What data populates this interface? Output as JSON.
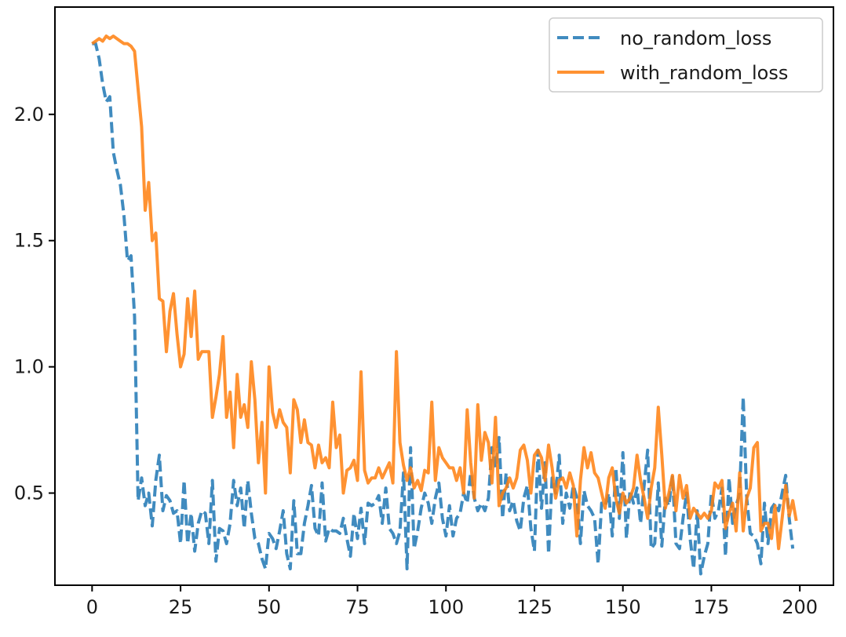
{
  "chart_data": {
    "type": "line",
    "title": "",
    "xlabel": "",
    "ylabel": "",
    "xlim": [
      -10.5,
      209.5
    ],
    "ylim": [
      0.135,
      2.425
    ],
    "xticks": [
      0,
      25,
      50,
      75,
      100,
      125,
      150,
      175,
      200
    ],
    "xtick_labels": [
      "0",
      "25",
      "50",
      "75",
      "100",
      "125",
      "150",
      "175",
      "200"
    ],
    "yticks": [
      0.5,
      1.0,
      1.5,
      2.0
    ],
    "ytick_labels": [
      "0.5",
      "1.0",
      "1.5",
      "2.0"
    ],
    "grid": false,
    "legend_position": "top-right",
    "series": [
      {
        "name": "no_random_loss",
        "color": "#1f77b4",
        "style": "dashed",
        "x_start": 0,
        "x_step": 1,
        "values": [
          2.28,
          2.28,
          2.22,
          2.12,
          2.05,
          2.07,
          1.85,
          1.78,
          1.72,
          1.6,
          1.42,
          1.44,
          1.2,
          0.47,
          0.56,
          0.45,
          0.5,
          0.37,
          0.55,
          0.65,
          0.43,
          0.49,
          0.47,
          0.42,
          0.43,
          0.3,
          0.55,
          0.3,
          0.42,
          0.27,
          0.38,
          0.43,
          0.42,
          0.3,
          0.55,
          0.23,
          0.36,
          0.35,
          0.3,
          0.38,
          0.55,
          0.45,
          0.52,
          0.36,
          0.55,
          0.42,
          0.32,
          0.3,
          0.24,
          0.2,
          0.34,
          0.32,
          0.28,
          0.35,
          0.43,
          0.26,
          0.2,
          0.47,
          0.26,
          0.26,
          0.38,
          0.45,
          0.53,
          0.36,
          0.33,
          0.54,
          0.31,
          0.36,
          0.35,
          0.35,
          0.34,
          0.4,
          0.32,
          0.25,
          0.42,
          0.32,
          0.44,
          0.3,
          0.46,
          0.45,
          0.46,
          0.49,
          0.38,
          0.52,
          0.36,
          0.34,
          0.3,
          0.35,
          0.58,
          0.2,
          0.68,
          0.28,
          0.35,
          0.44,
          0.5,
          0.46,
          0.38,
          0.48,
          0.54,
          0.4,
          0.33,
          0.45,
          0.33,
          0.4,
          0.42,
          0.5,
          0.46,
          0.58,
          0.48,
          0.43,
          0.46,
          0.43,
          0.48,
          0.68,
          0.6,
          0.72,
          0.4,
          0.58,
          0.43,
          0.47,
          0.39,
          0.35,
          0.48,
          0.53,
          0.36,
          0.27,
          0.67,
          0.44,
          0.62,
          0.26,
          0.56,
          0.5,
          0.65,
          0.38,
          0.5,
          0.44,
          0.53,
          0.48,
          0.3,
          0.51,
          0.45,
          0.43,
          0.4,
          0.22,
          0.46,
          0.45,
          0.5,
          0.33,
          0.6,
          0.4,
          0.66,
          0.32,
          0.51,
          0.46,
          0.52,
          0.38,
          0.53,
          0.67,
          0.28,
          0.3,
          0.54,
          0.29,
          0.48,
          0.45,
          0.57,
          0.3,
          0.28,
          0.4,
          0.5,
          0.32,
          0.2,
          0.43,
          0.18,
          0.25,
          0.3,
          0.5,
          0.4,
          0.43,
          0.52,
          0.25,
          0.56,
          0.38,
          0.45,
          0.5,
          0.88,
          0.48,
          0.34,
          0.33,
          0.3,
          0.22,
          0.46,
          0.3,
          0.44,
          0.46,
          0.43,
          0.5,
          0.57,
          0.4,
          0.28
        ]
      },
      {
        "name": "with_random_loss",
        "color": "#ff7f0e",
        "style": "solid",
        "x_start": 0,
        "x_step": 1,
        "values": [
          2.28,
          2.29,
          2.3,
          2.29,
          2.31,
          2.3,
          2.31,
          2.3,
          2.29,
          2.28,
          2.28,
          2.27,
          2.25,
          2.1,
          1.95,
          1.62,
          1.73,
          1.5,
          1.53,
          1.27,
          1.26,
          1.06,
          1.22,
          1.29,
          1.13,
          1.0,
          1.05,
          1.27,
          1.12,
          1.3,
          1.03,
          1.06,
          1.06,
          1.06,
          0.8,
          0.88,
          0.97,
          1.12,
          0.8,
          0.9,
          0.68,
          0.97,
          0.8,
          0.85,
          0.76,
          1.02,
          0.87,
          0.62,
          0.78,
          0.5,
          1.0,
          0.82,
          0.76,
          0.83,
          0.78,
          0.76,
          0.58,
          0.87,
          0.83,
          0.7,
          0.79,
          0.7,
          0.69,
          0.6,
          0.69,
          0.62,
          0.64,
          0.6,
          0.86,
          0.68,
          0.73,
          0.5,
          0.59,
          0.6,
          0.63,
          0.55,
          0.98,
          0.59,
          0.54,
          0.56,
          0.56,
          0.6,
          0.56,
          0.59,
          0.62,
          0.54,
          1.06,
          0.7,
          0.61,
          0.55,
          0.6,
          0.52,
          0.55,
          0.51,
          0.59,
          0.58,
          0.86,
          0.55,
          0.68,
          0.64,
          0.62,
          0.6,
          0.6,
          0.55,
          0.6,
          0.5,
          0.83,
          0.62,
          0.48,
          0.85,
          0.63,
          0.74,
          0.7,
          0.54,
          0.8,
          0.45,
          0.5,
          0.52,
          0.56,
          0.52,
          0.56,
          0.67,
          0.69,
          0.63,
          0.5,
          0.65,
          0.67,
          0.64,
          0.55,
          0.69,
          0.6,
          0.48,
          0.55,
          0.56,
          0.52,
          0.58,
          0.53,
          0.33,
          0.55,
          0.68,
          0.6,
          0.66,
          0.58,
          0.56,
          0.5,
          0.44,
          0.56,
          0.6,
          0.48,
          0.42,
          0.5,
          0.46,
          0.48,
          0.52,
          0.65,
          0.55,
          0.48,
          0.4,
          0.52,
          0.6,
          0.84,
          0.65,
          0.44,
          0.5,
          0.57,
          0.43,
          0.57,
          0.48,
          0.53,
          0.4,
          0.44,
          0.42,
          0.4,
          0.42,
          0.4,
          0.43,
          0.54,
          0.52,
          0.55,
          0.36,
          0.42,
          0.46,
          0.35,
          0.58,
          0.35,
          0.48,
          0.52,
          0.68,
          0.7,
          0.35,
          0.38,
          0.38,
          0.32,
          0.45,
          0.28,
          0.4,
          0.53,
          0.41,
          0.47,
          0.39
        ]
      }
    ]
  }
}
